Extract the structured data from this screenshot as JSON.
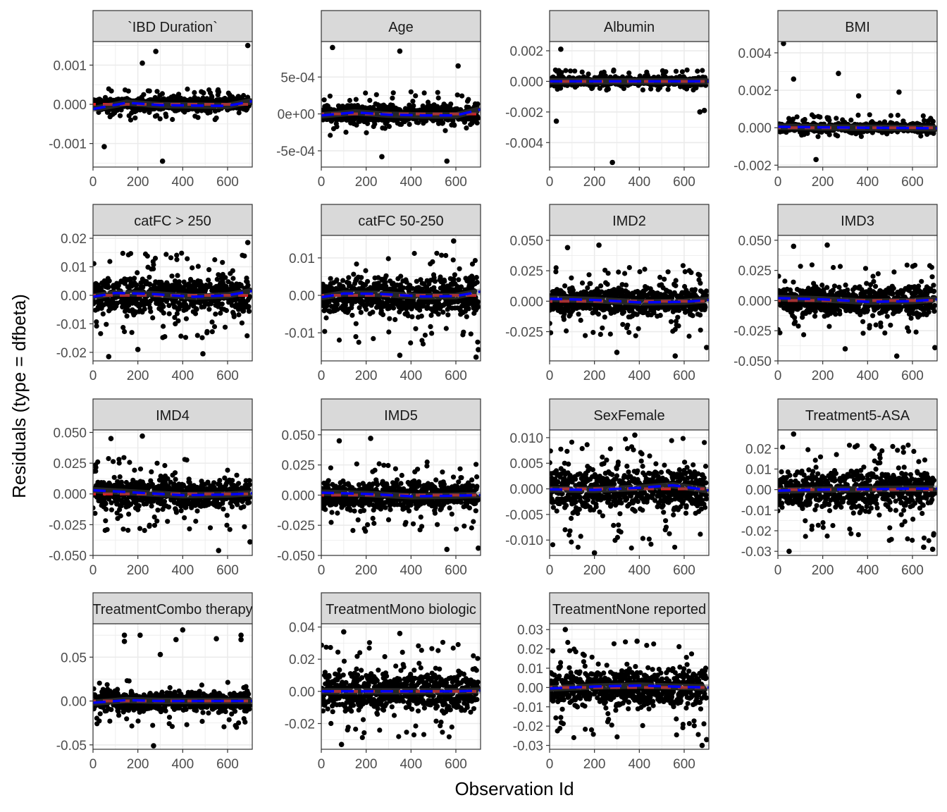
{
  "figure": {
    "ylabel": "Residuals (type = dfbeta)",
    "xlabel": "Observation Id"
  },
  "colors": {
    "strip_fill": "#d9d9d9",
    "grid": "#ebebeb",
    "points": "#000000",
    "ref_line": "#e41a1c",
    "smooth": "#0000ff",
    "band": "#555555"
  },
  "chart_data": [
    {
      "type": "scatter",
      "title": "`IBD Duration`",
      "xlim": [
        0,
        710
      ],
      "ylim": [
        -0.0016,
        0.0016
      ],
      "xticks": [
        0,
        200,
        400,
        600
      ],
      "xtick_labels": [
        "0",
        "200",
        "400",
        "600"
      ],
      "yticks": [
        -0.001,
        0,
        0.001
      ],
      "ytick_labels": [
        "-0.001",
        "0.000",
        "0.001"
      ],
      "spread_lo": -0.0004,
      "spread_hi": 0.0004,
      "outliers": [
        {
          "x": 310,
          "y": -0.00145
        },
        {
          "x": 690,
          "y": 0.0015
        },
        {
          "x": 280,
          "y": 0.00135
        },
        {
          "x": 220,
          "y": 0.00105
        },
        {
          "x": 50,
          "y": -0.00108
        }
      ],
      "smooth": [
        [
          0,
          -0.00012
        ],
        [
          150,
          4e-05
        ],
        [
          300,
          -2e-05
        ],
        [
          450,
          -3e-05
        ],
        [
          600,
          -4e-05
        ],
        [
          710,
          8e-05
        ]
      ]
    },
    {
      "type": "scatter",
      "title": "Age",
      "xlim": [
        0,
        710
      ],
      "ylim": [
        -0.00072,
        0.00098
      ],
      "xticks": [
        0,
        200,
        400,
        600
      ],
      "xtick_labels": [
        "0",
        "200",
        "400",
        "600"
      ],
      "yticks": [
        -0.0005,
        0,
        0.0005
      ],
      "ytick_labels": [
        "-5e-04",
        "0e+00",
        "5e-04"
      ],
      "spread_lo": -0.0003,
      "spread_hi": 0.0003,
      "outliers": [
        {
          "x": 50,
          "y": 0.0009
        },
        {
          "x": 350,
          "y": 0.00085
        },
        {
          "x": 560,
          "y": -0.00064
        },
        {
          "x": 610,
          "y": 0.00065
        },
        {
          "x": 270,
          "y": -0.00058
        }
      ],
      "smooth": [
        [
          0,
          -2e-05
        ],
        [
          150,
          2e-05
        ],
        [
          300,
          -1e-05
        ],
        [
          450,
          -2e-05
        ],
        [
          600,
          -2e-05
        ],
        [
          710,
          6e-05
        ]
      ]
    },
    {
      "type": "scatter",
      "title": "Albumin",
      "xlim": [
        0,
        710
      ],
      "ylim": [
        -0.0056,
        0.0026
      ],
      "xticks": [
        0,
        200,
        400,
        600
      ],
      "xtick_labels": [
        "0",
        "200",
        "400",
        "600"
      ],
      "yticks": [
        -0.004,
        -0.002,
        0,
        0.002
      ],
      "ytick_labels": [
        "-0.004",
        "-0.002",
        "0.000",
        "0.002"
      ],
      "spread_lo": -0.0006,
      "spread_hi": 0.0008,
      "outliers": [
        {
          "x": 280,
          "y": -0.0053
        },
        {
          "x": 30,
          "y": -0.0026
        },
        {
          "x": 50,
          "y": 0.0021
        },
        {
          "x": 690,
          "y": -0.0019
        },
        {
          "x": 670,
          "y": -0.002
        }
      ],
      "smooth": [
        [
          0,
          0
        ],
        [
          200,
          0
        ],
        [
          400,
          0
        ],
        [
          600,
          0
        ],
        [
          710,
          0
        ]
      ]
    },
    {
      "type": "scatter",
      "title": "BMI",
      "xlim": [
        0,
        710
      ],
      "ylim": [
        -0.0021,
        0.0046
      ],
      "xticks": [
        0,
        200,
        400,
        600
      ],
      "xtick_labels": [
        "0",
        "200",
        "400",
        "600"
      ],
      "yticks": [
        -0.002,
        0,
        0.002,
        0.004
      ],
      "ytick_labels": [
        "-0.002",
        "0.000",
        "0.002",
        "0.004"
      ],
      "spread_lo": -0.0005,
      "spread_hi": 0.0007,
      "outliers": [
        {
          "x": 25,
          "y": 0.0045
        },
        {
          "x": 70,
          "y": 0.0026
        },
        {
          "x": 270,
          "y": 0.0029
        },
        {
          "x": 170,
          "y": -0.0017
        },
        {
          "x": 540,
          "y": 0.0019
        },
        {
          "x": 360,
          "y": 0.0017
        }
      ],
      "smooth": [
        [
          0,
          5e-05
        ],
        [
          200,
          2e-05
        ],
        [
          400,
          0
        ],
        [
          600,
          -2e-05
        ],
        [
          710,
          -3e-05
        ]
      ]
    },
    {
      "type": "scatter",
      "title": "catFC > 250",
      "xlim": [
        0,
        710
      ],
      "ylim": [
        -0.023,
        0.021
      ],
      "xticks": [
        0,
        200,
        400,
        600
      ],
      "xtick_labels": [
        "0",
        "200",
        "400",
        "600"
      ],
      "yticks": [
        -0.02,
        -0.01,
        0,
        0.01,
        0.02
      ],
      "ytick_labels": [
        "-0.02",
        "-0.01",
        "0.00",
        "0.01",
        "0.02"
      ],
      "spread_lo": -0.015,
      "spread_hi": 0.015,
      "outliers": [
        {
          "x": 70,
          "y": -0.0215
        },
        {
          "x": 490,
          "y": -0.0205
        },
        {
          "x": 690,
          "y": 0.0185
        },
        {
          "x": 200,
          "y": -0.019
        }
      ],
      "smooth": [
        [
          0,
          -0.0005
        ],
        [
          100,
          0.0008
        ],
        [
          250,
          0.0005
        ],
        [
          450,
          -0.0005
        ],
        [
          600,
          0
        ],
        [
          710,
          0.0015
        ]
      ]
    },
    {
      "type": "scatter",
      "title": "catFC 50-250",
      "xlim": [
        0,
        710
      ],
      "ylim": [
        -0.0175,
        0.016
      ],
      "xticks": [
        0,
        200,
        400,
        600
      ],
      "xtick_labels": [
        "0",
        "200",
        "400",
        "600"
      ],
      "yticks": [
        -0.01,
        0,
        0.01
      ],
      "ytick_labels": [
        "-0.01",
        "0.00",
        "0.01"
      ],
      "spread_lo": -0.013,
      "spread_hi": 0.013,
      "outliers": [
        {
          "x": 700,
          "y": -0.0145
        },
        {
          "x": 690,
          "y": -0.0165
        },
        {
          "x": 350,
          "y": -0.016
        },
        {
          "x": 590,
          "y": 0.0145
        }
      ],
      "smooth": [
        [
          0,
          -0.0005
        ],
        [
          100,
          0.0005
        ],
        [
          250,
          0.0004
        ],
        [
          450,
          -0.0003
        ],
        [
          600,
          -0.0002
        ],
        [
          710,
          0.001
        ]
      ]
    },
    {
      "type": "scatter",
      "title": "IMD2",
      "xlim": [
        0,
        710
      ],
      "ylim": [
        -0.049,
        0.054
      ],
      "xticks": [
        0,
        200,
        400,
        600
      ],
      "xtick_labels": [
        "0",
        "200",
        "400",
        "600"
      ],
      "yticks": [
        -0.025,
        0,
        0.025,
        0.05
      ],
      "ytick_labels": [
        "-0.025",
        "0.000",
        "0.025",
        "0.050"
      ],
      "spread_lo": -0.03,
      "spread_hi": 0.03,
      "outliers": [
        {
          "x": 220,
          "y": 0.046
        },
        {
          "x": 80,
          "y": 0.044
        },
        {
          "x": 560,
          "y": -0.045
        },
        {
          "x": 700,
          "y": -0.038
        },
        {
          "x": 300,
          "y": -0.042
        }
      ],
      "smooth": [
        [
          0,
          0.002
        ],
        [
          200,
          0.001
        ],
        [
          400,
          -0.001
        ],
        [
          600,
          -0.0005
        ],
        [
          710,
          0.001
        ]
      ]
    },
    {
      "type": "scatter",
      "title": "IMD3",
      "xlim": [
        0,
        710
      ],
      "ylim": [
        -0.05,
        0.054
      ],
      "xticks": [
        0,
        200,
        400,
        600
      ],
      "xtick_labels": [
        "0",
        "200",
        "400",
        "600"
      ],
      "yticks": [
        -0.05,
        -0.025,
        0,
        0.025,
        0.05
      ],
      "ytick_labels": [
        "-0.050",
        "-0.025",
        "0.000",
        "0.025",
        "0.050"
      ],
      "spread_lo": -0.03,
      "spread_hi": 0.03,
      "outliers": [
        {
          "x": 220,
          "y": 0.046
        },
        {
          "x": 70,
          "y": 0.045
        },
        {
          "x": 530,
          "y": -0.046
        },
        {
          "x": 700,
          "y": -0.039
        },
        {
          "x": 300,
          "y": -0.04
        }
      ],
      "smooth": [
        [
          0,
          0.002
        ],
        [
          200,
          0.001
        ],
        [
          400,
          -0.001
        ],
        [
          600,
          -0.0005
        ],
        [
          710,
          0.001
        ]
      ]
    },
    {
      "type": "scatter",
      "title": "IMD4",
      "xlim": [
        0,
        710
      ],
      "ylim": [
        -0.05,
        0.052
      ],
      "xticks": [
        0,
        200,
        400,
        600
      ],
      "xtick_labels": [
        "0",
        "200",
        "400",
        "600"
      ],
      "yticks": [
        -0.05,
        -0.025,
        0,
        0.025,
        0.05
      ],
      "ytick_labels": [
        "-0.050",
        "-0.025",
        "0.000",
        "0.025",
        "0.050"
      ],
      "spread_lo": -0.03,
      "spread_hi": 0.03,
      "outliers": [
        {
          "x": 220,
          "y": 0.047
        },
        {
          "x": 80,
          "y": 0.045
        },
        {
          "x": 560,
          "y": -0.046
        },
        {
          "x": 700,
          "y": -0.039
        }
      ],
      "smooth": [
        [
          0,
          0.003
        ],
        [
          200,
          0.001
        ],
        [
          400,
          -0.001
        ],
        [
          600,
          -0.0005
        ],
        [
          710,
          0.0005
        ]
      ]
    },
    {
      "type": "scatter",
      "title": "IMD5",
      "xlim": [
        0,
        710
      ],
      "ylim": [
        -0.05,
        0.054
      ],
      "xticks": [
        0,
        200,
        400,
        600
      ],
      "xtick_labels": [
        "0",
        "200",
        "400",
        "600"
      ],
      "yticks": [
        -0.05,
        -0.025,
        0,
        0.025,
        0.05
      ],
      "ytick_labels": [
        "-0.050",
        "-0.025",
        "0.000",
        "0.025",
        "0.050"
      ],
      "spread_lo": -0.03,
      "spread_hi": 0.03,
      "outliers": [
        {
          "x": 220,
          "y": 0.047
        },
        {
          "x": 80,
          "y": 0.045
        },
        {
          "x": 560,
          "y": -0.045
        },
        {
          "x": 700,
          "y": -0.044
        }
      ],
      "smooth": [
        [
          0,
          0.002
        ],
        [
          200,
          0.001
        ],
        [
          400,
          -0.001
        ],
        [
          600,
          -0.0005
        ],
        [
          710,
          0
        ]
      ]
    },
    {
      "type": "scatter",
      "title": "SexFemale",
      "xlim": [
        0,
        710
      ],
      "ylim": [
        -0.013,
        0.0115
      ],
      "xticks": [
        0,
        200,
        400,
        600
      ],
      "xtick_labels": [
        "0",
        "200",
        "400",
        "600"
      ],
      "yticks": [
        -0.01,
        -0.005,
        0,
        0.005,
        0.01
      ],
      "ytick_labels": [
        "-0.010",
        "-0.005",
        "0.000",
        "0.005",
        "0.010"
      ],
      "spread_lo": -0.012,
      "spread_hi": 0.01,
      "outliers": [
        {
          "x": 200,
          "y": -0.0125
        },
        {
          "x": 380,
          "y": 0.0105
        }
      ],
      "smooth": [
        [
          0,
          -0.0001
        ],
        [
          200,
          -0.0002
        ],
        [
          400,
          0.0002
        ],
        [
          550,
          0.0007
        ],
        [
          710,
          -0.0003
        ]
      ]
    },
    {
      "type": "scatter",
      "title": "Treatment5-ASA",
      "xlim": [
        0,
        710
      ],
      "ylim": [
        -0.032,
        0.029
      ],
      "xticks": [
        0,
        200,
        400,
        600
      ],
      "xtick_labels": [
        "0",
        "200",
        "400",
        "600"
      ],
      "yticks": [
        -0.03,
        -0.02,
        -0.01,
        0,
        0.01,
        0.02
      ],
      "ytick_labels": [
        "-0.03",
        "-0.02",
        "-0.01",
        "0.00",
        "0.01",
        "0.02"
      ],
      "spread_lo": -0.025,
      "spread_hi": 0.022,
      "outliers": [
        {
          "x": 70,
          "y": 0.027
        },
        {
          "x": 50,
          "y": -0.03
        },
        {
          "x": 690,
          "y": -0.029
        },
        {
          "x": 650,
          "y": -0.028
        }
      ],
      "smooth": [
        [
          0,
          -0.0005
        ],
        [
          200,
          0
        ],
        [
          400,
          0.0002
        ],
        [
          600,
          0.0005
        ],
        [
          710,
          0.0005
        ]
      ]
    },
    {
      "type": "scatter",
      "title": "TreatmentCombo therapy",
      "xlim": [
        0,
        710
      ],
      "ylim": [
        -0.055,
        0.088
      ],
      "xticks": [
        0,
        200,
        400,
        600
      ],
      "xtick_labels": [
        "0",
        "200",
        "400",
        "600"
      ],
      "yticks": [
        -0.05,
        0,
        0.05
      ],
      "ytick_labels": [
        "-0.05",
        "0.00",
        "0.05"
      ],
      "spread_lo": -0.03,
      "spread_hi": 0.025,
      "outliers": [
        {
          "x": 400,
          "y": 0.081
        },
        {
          "x": 270,
          "y": -0.051
        },
        {
          "x": 140,
          "y": 0.075
        },
        {
          "x": 210,
          "y": 0.075
        },
        {
          "x": 660,
          "y": 0.075
        },
        {
          "x": 550,
          "y": 0.071
        },
        {
          "x": 370,
          "y": 0.07
        },
        {
          "x": 140,
          "y": 0.068
        },
        {
          "x": 660,
          "y": 0.07
        },
        {
          "x": 300,
          "y": 0.053
        }
      ],
      "smooth": [
        [
          0,
          -0.002
        ],
        [
          150,
          0.001
        ],
        [
          300,
          0
        ],
        [
          450,
          0
        ],
        [
          600,
          0
        ],
        [
          710,
          0
        ]
      ]
    },
    {
      "type": "scatter",
      "title": "TreatmentMono biologic",
      "xlim": [
        0,
        710
      ],
      "ylim": [
        -0.036,
        0.042
      ],
      "xticks": [
        0,
        200,
        400,
        600
      ],
      "xtick_labels": [
        "0",
        "200",
        "400",
        "600"
      ],
      "yticks": [
        -0.02,
        0,
        0.02,
        0.04
      ],
      "ytick_labels": [
        "-0.02",
        "0.00",
        "0.02",
        "0.04"
      ],
      "spread_lo": -0.03,
      "spread_hi": 0.033,
      "outliers": [
        {
          "x": 90,
          "y": -0.033
        },
        {
          "x": 350,
          "y": 0.036
        },
        {
          "x": 100,
          "y": 0.037
        }
      ],
      "smooth": [
        [
          0,
          0
        ],
        [
          200,
          0
        ],
        [
          400,
          0
        ],
        [
          600,
          0
        ],
        [
          710,
          0.0005
        ]
      ]
    },
    {
      "type": "scatter",
      "title": "TreatmentNone reported",
      "xlim": [
        0,
        710
      ],
      "ylim": [
        -0.032,
        0.033
      ],
      "xticks": [
        0,
        200,
        400,
        600
      ],
      "xtick_labels": [
        "0",
        "200",
        "400",
        "600"
      ],
      "yticks": [
        -0.03,
        -0.02,
        -0.01,
        0,
        0.01,
        0.02,
        0.03
      ],
      "ytick_labels": [
        "-0.03",
        "-0.02",
        "-0.01",
        "0.00",
        "0.01",
        "0.02",
        "0.03"
      ],
      "spread_lo": -0.027,
      "spread_hi": 0.024,
      "outliers": [
        {
          "x": 70,
          "y": 0.03
        },
        {
          "x": 680,
          "y": -0.03
        },
        {
          "x": 700,
          "y": -0.027
        },
        {
          "x": 390,
          "y": 0.024
        }
      ],
      "smooth": [
        [
          0,
          -0.0005
        ],
        [
          200,
          0.0005
        ],
        [
          400,
          0.001
        ],
        [
          600,
          0.0003
        ],
        [
          710,
          0
        ]
      ]
    }
  ]
}
